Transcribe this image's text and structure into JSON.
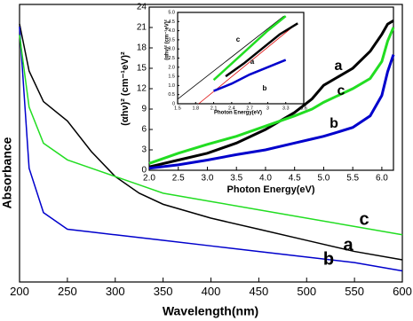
{
  "chart_data": [
    {
      "type": "line",
      "x_label": "Wavelength(nm)",
      "y_label": "Absorbance",
      "x": [
        200,
        210,
        225,
        250,
        275,
        300,
        325,
        350,
        400,
        450,
        500,
        550,
        600
      ],
      "series": [
        {
          "name": "a",
          "color": "#000000",
          "values": [
            0.93,
            0.76,
            0.65,
            0.58,
            0.47,
            0.38,
            0.32,
            0.28,
            0.23,
            0.19,
            0.15,
            0.11,
            0.08
          ]
        },
        {
          "name": "b",
          "color": "#0000cc",
          "values": [
            0.92,
            0.41,
            0.25,
            0.19,
            0.18,
            0.17,
            0.16,
            0.15,
            0.13,
            0.11,
            0.09,
            0.07,
            0.04
          ]
        },
        {
          "name": "c",
          "color": "#22dd22",
          "values": [
            0.89,
            0.63,
            0.5,
            0.44,
            0.41,
            0.38,
            0.35,
            0.32,
            0.29,
            0.26,
            0.23,
            0.2,
            0.17
          ]
        }
      ],
      "xlim": [
        200,
        600
      ],
      "xticks": [
        200,
        250,
        300,
        350,
        400,
        450,
        500,
        550,
        600
      ],
      "ylim": [
        0,
        1
      ]
    },
    {
      "type": "line",
      "x_label": "Photon Energy(eV)",
      "y_label": "(αhν)² (cm⁻¹eV)²",
      "x": [
        2.0,
        2.5,
        3.0,
        3.5,
        4.0,
        4.5,
        4.8,
        5.0,
        5.2,
        5.5,
        5.8,
        6.0,
        6.1,
        6.2
      ],
      "series": [
        {
          "name": "a",
          "color": "#000000",
          "values": [
            0.5,
            1.5,
            2.5,
            4.0,
            6.0,
            8.5,
            10.5,
            12.5,
            13.5,
            15.0,
            17.5,
            20.0,
            21.5,
            22.0
          ]
        },
        {
          "name": "b",
          "color": "#0000cc",
          "values": [
            0.3,
            0.8,
            1.5,
            2.3,
            3.0,
            4.0,
            4.6,
            5.0,
            5.5,
            6.3,
            8.0,
            11.0,
            14.5,
            17.0
          ]
        },
        {
          "name": "c",
          "color": "#22dd22",
          "values": [
            1.0,
            2.5,
            3.8,
            5.0,
            6.5,
            8.0,
            9.0,
            10.0,
            10.8,
            12.0,
            13.5,
            16.0,
            19.0,
            21.0
          ]
        }
      ],
      "xlim": [
        2.0,
        6.2
      ],
      "xticks": [
        {
          "value": 2,
          "label": "2.0"
        },
        2.5,
        {
          "value": 3,
          "label": "3.0"
        },
        3.5,
        {
          "value": 4,
          "label": "4.0"
        },
        4.5,
        {
          "value": 5,
          "label": "5.0"
        },
        5.5,
        {
          "value": 6,
          "label": "6.0"
        }
      ],
      "ylim": [
        0,
        24
      ],
      "yticks": [
        0,
        3,
        6,
        9,
        12,
        15,
        18,
        21,
        24
      ]
    },
    {
      "type": "line",
      "x_label": "Photon Energy(eV)",
      "y_label": "(αhν)² (cm⁻¹eV)²",
      "series": [
        {
          "name": "c",
          "color": "#22dd22",
          "x": [
            2.1,
            2.4,
            2.7,
            3.0,
            3.3
          ],
          "values": [
            1.3,
            2.2,
            3.1,
            4.0,
            4.8
          ]
        },
        {
          "name": "a",
          "color": "#000000",
          "x": [
            2.3,
            2.6,
            2.9,
            3.2,
            3.5
          ],
          "values": [
            1.5,
            2.2,
            3.0,
            3.8,
            4.4
          ]
        },
        {
          "name": "b",
          "color": "#0000cc",
          "x": [
            2.1,
            2.4,
            2.7,
            3.0,
            3.3
          ],
          "values": [
            0.7,
            1.1,
            1.6,
            2.0,
            2.4
          ]
        }
      ],
      "fits": [
        {
          "color": "#000000",
          "x": [
            1.5,
            3.27
          ],
          "values": [
            0.25,
            4.8
          ]
        },
        {
          "color": "#dd0000",
          "x": [
            1.85,
            3.45
          ],
          "values": [
            0,
            4.3
          ]
        }
      ],
      "xlim": [
        1.5,
        3.6
      ],
      "xticks": [
        1.5,
        1.8,
        2.1,
        2.4,
        2.7,
        3.0,
        3.3,
        3.6
      ],
      "ylim": [
        0,
        5
      ],
      "yticks": [
        0,
        0.5,
        {
          "value": 1,
          "label": "1.0"
        },
        1.5,
        {
          "value": 2,
          "label": "2.0"
        },
        2.5,
        {
          "value": 3,
          "label": "3.0"
        },
        3.5,
        {
          "value": 4,
          "label": "4.0"
        },
        4.5,
        {
          "value": 5,
          "label": "5.0"
        }
      ]
    }
  ]
}
